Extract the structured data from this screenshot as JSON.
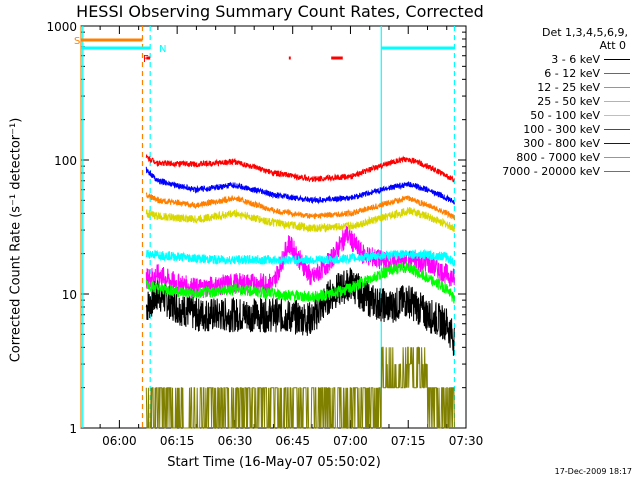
{
  "title": "HESSI Observing Summary Count Rates, Corrected",
  "stamp": "17-Dec-2009 18:17",
  "colors": {
    "black": "#000000",
    "magenta": "#ff00ff",
    "green": "#00ff00",
    "cyan": "#00ffff",
    "yellow": "#d8d800",
    "red": "#ff0000",
    "blue": "#0000ff",
    "orange": "#ff8000",
    "olive": "#808000"
  },
  "legend": {
    "det_line1": "Det 1,3,4,5,6,9,",
    "det_line2": "Att 0",
    "items": [
      {
        "label": "3 - 6 keV",
        "color": "#000000"
      },
      {
        "label": "6 - 12 keV",
        "color": "#ff00ff"
      },
      {
        "label": "12 - 25 keV",
        "color": "#00ff00"
      },
      {
        "label": "25 - 50 keV",
        "color": "#00ffff"
      },
      {
        "label": "50 - 100 keV",
        "color": "#d8d800"
      },
      {
        "label": "100 - 300 keV",
        "color": "#ff0000"
      },
      {
        "label": "300 - 800 keV",
        "color": "#0000ff"
      },
      {
        "label": "800 - 7000 keV",
        "color": "#ff8000"
      },
      {
        "label": "7000 - 20000 keV",
        "color": "#808000"
      }
    ]
  },
  "flags": {
    "s": "S",
    "n": "N",
    "f": "F"
  },
  "chart_data": {
    "type": "line",
    "title": "HESSI Observing Summary Count Rates, Corrected",
    "xlabel": "Start Time (16-May-07 05:50:02)",
    "ylabel": "Corrected Count Rate (s⁻¹ detector⁻¹)",
    "y_scale": "log",
    "ylim": [
      1,
      1000
    ],
    "xlim": [
      "05:50:02",
      "07:30:00"
    ],
    "x_ticks": [
      "06:00",
      "06:15",
      "06:30",
      "06:45",
      "07:00",
      "07:15",
      "07:30"
    ],
    "y_ticks": [
      "1",
      "10",
      "100",
      "1000"
    ],
    "series": [
      {
        "name": "3 - 6 keV",
        "color": "#000000",
        "times": [
          "06:07",
          "06:10",
          "06:15",
          "06:20",
          "06:30",
          "06:40",
          "06:50",
          "06:55",
          "07:00",
          "07:05",
          "07:10",
          "07:15",
          "07:20",
          "07:25",
          "07:27"
        ],
        "values": [
          8,
          10,
          8,
          7,
          7,
          7,
          6.5,
          10,
          12,
          9,
          8,
          9,
          7,
          6,
          4.5
        ]
      },
      {
        "name": "6 - 12 keV",
        "color": "#ff00ff",
        "times": [
          "06:07",
          "06:10",
          "06:15",
          "06:20",
          "06:30",
          "06:40",
          "06:44",
          "06:50",
          "06:55",
          "06:59",
          "07:03",
          "07:10",
          "07:15",
          "07:20",
          "07:25",
          "07:27"
        ],
        "values": [
          13,
          14,
          12,
          11,
          12,
          12,
          24,
          13,
          18,
          28,
          20,
          17,
          18,
          17,
          14,
          13
        ]
      },
      {
        "name": "12 - 25 keV",
        "color": "#00ff00",
        "times": [
          "06:07",
          "06:10",
          "06:20",
          "06:30",
          "06:40",
          "06:50",
          "06:55",
          "07:00",
          "07:05",
          "07:10",
          "07:15",
          "07:20",
          "07:25",
          "07:27"
        ],
        "values": [
          12,
          11,
          10,
          11,
          10,
          9.5,
          10,
          11,
          13,
          15,
          16,
          13,
          11,
          9
        ]
      },
      {
        "name": "25 - 50 keV",
        "color": "#00ffff",
        "times": [
          "06:07",
          "06:15",
          "06:25",
          "06:35",
          "06:45",
          "06:55",
          "07:05",
          "07:15",
          "07:25",
          "07:27"
        ],
        "values": [
          20,
          19,
          18,
          18,
          18,
          18,
          19,
          20,
          19,
          17
        ]
      },
      {
        "name": "50 - 100 keV",
        "color": "#d8d800",
        "times": [
          "06:07",
          "06:10",
          "06:20",
          "06:30",
          "06:40",
          "06:50",
          "07:00",
          "07:10",
          "07:15",
          "07:20",
          "07:25",
          "07:27"
        ],
        "values": [
          40,
          38,
          36,
          40,
          34,
          31,
          32,
          38,
          42,
          38,
          33,
          31
        ]
      },
      {
        "name": "100 - 300 keV",
        "color": "#ff0000",
        "times": [
          "06:07",
          "06:10",
          "06:20",
          "06:30",
          "06:40",
          "06:50",
          "07:00",
          "07:10",
          "07:15",
          "07:20",
          "07:25",
          "07:27"
        ],
        "values": [
          105,
          95,
          93,
          97,
          80,
          72,
          75,
          95,
          102,
          90,
          76,
          70
        ]
      },
      {
        "name": "300 - 800 keV",
        "color": "#0000ff",
        "times": [
          "06:07",
          "06:10",
          "06:20",
          "06:30",
          "06:40",
          "06:50",
          "07:00",
          "07:10",
          "07:15",
          "07:20",
          "07:25",
          "07:27"
        ],
        "values": [
          85,
          70,
          60,
          65,
          55,
          50,
          52,
          62,
          66,
          60,
          52,
          48
        ]
      },
      {
        "name": "800 - 7000 keV",
        "color": "#ff8000",
        "times": [
          "06:07",
          "06:10",
          "06:20",
          "06:30",
          "06:40",
          "06:50",
          "07:00",
          "07:10",
          "07:15",
          "07:20",
          "07:25",
          "07:27"
        ],
        "values": [
          55,
          50,
          46,
          52,
          42,
          38,
          40,
          48,
          52,
          46,
          40,
          37
        ]
      },
      {
        "name": "7000 - 20000 keV",
        "color": "#808000",
        "times": [
          "06:07",
          "06:15",
          "06:20",
          "06:30",
          "06:40",
          "06:50",
          "07:00",
          "07:05",
          "07:09",
          "07:15",
          "07:20",
          "07:25",
          "07:27"
        ],
        "values": [
          1.5,
          1.6,
          2,
          1.5,
          1.6,
          1.5,
          1.4,
          1.5,
          3,
          3.2,
          2.5,
          1.8,
          1.6
        ],
        "low": 1.0,
        "high_note": "rate alternates between 1 and 2 (or 2-4 after 07:09)"
      }
    ],
    "flag_bars": [
      {
        "label": "S",
        "color": "#ff8000",
        "start": "05:50:02",
        "end": "06:06",
        "level": "top"
      },
      {
        "label": "N",
        "color": "#00ffff",
        "start": "05:50:02",
        "end": "06:08",
        "level": "second"
      },
      {
        "label": "N",
        "color": "#00ffff",
        "start": "07:08",
        "end": "07:27",
        "level": "second"
      },
      {
        "label": "F",
        "color": "#ff0000",
        "start": "06:07",
        "end": "06:08",
        "level": "third"
      },
      {
        "label": "F",
        "color": "#ff0000",
        "start": "06:44",
        "end": "06:44:30",
        "level": "third"
      },
      {
        "label": "F",
        "color": "#ff0000",
        "start": "06:55",
        "end": "06:58",
        "level": "third"
      }
    ],
    "vertical_lines": [
      {
        "time": "05:50:02",
        "color": "#ff8000",
        "style": "solid"
      },
      {
        "time": "05:50:30",
        "color": "#00ffff",
        "style": "solid"
      },
      {
        "time": "06:06",
        "color": "#ff8000",
        "style": "dashed"
      },
      {
        "time": "06:08",
        "color": "#00ffff",
        "style": "dashed"
      },
      {
        "time": "07:08",
        "color": "#00ffff",
        "style": "solid"
      },
      {
        "time": "07:27",
        "color": "#00ffff",
        "style": "dashed"
      }
    ]
  }
}
